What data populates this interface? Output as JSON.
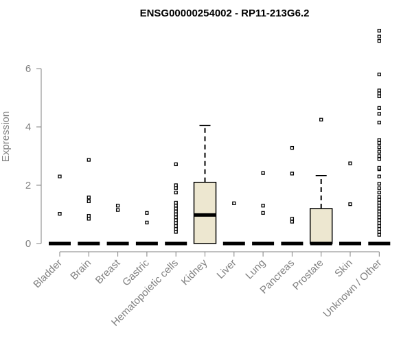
{
  "chart_data": {
    "type": "box",
    "title": "ENSG00000254002 - RP11-213G6.2",
    "ylabel": "Expression",
    "xlabel": "",
    "ylim": [
      0,
      7.5
    ],
    "yticks": [
      0,
      2,
      4,
      6
    ],
    "colors": {
      "box_fill": "#ede7d0",
      "axis": "#808080",
      "stroke": "#000000"
    },
    "categories": [
      "Bladder",
      "Brain",
      "Breast",
      "Gastric",
      "Hematopoietic cells",
      "Kidney",
      "Liver",
      "Lung",
      "Pancreas",
      "Prostate",
      "Skin",
      "Unknown / Other"
    ],
    "boxes": [
      {
        "q1": 0,
        "median": 0,
        "q3": 0,
        "whisker_low": 0,
        "whisker_high": 0,
        "outliers": [
          1.02,
          2.3
        ]
      },
      {
        "q1": 0,
        "median": 0,
        "q3": 0,
        "whisker_low": 0,
        "whisker_high": 0,
        "outliers": [
          0.85,
          0.95,
          1.45,
          1.58,
          2.87
        ]
      },
      {
        "q1": 0,
        "median": 0,
        "q3": 0,
        "whisker_low": 0,
        "whisker_high": 0,
        "outliers": [
          1.15,
          1.3
        ]
      },
      {
        "q1": 0,
        "median": 0,
        "q3": 0,
        "whisker_low": 0,
        "whisker_high": 0,
        "outliers": [
          0.72,
          1.05
        ]
      },
      {
        "q1": 0,
        "median": 0,
        "q3": 0,
        "whisker_low": 0,
        "whisker_high": 0,
        "outliers": [
          0.4,
          0.5,
          0.6,
          0.7,
          0.8,
          0.9,
          1.0,
          1.1,
          1.2,
          1.3,
          1.4,
          1.75,
          1.9,
          2.0,
          2.72
        ]
      },
      {
        "q1": 0,
        "median": 0.98,
        "q3": 2.1,
        "whisker_low": 0,
        "whisker_high": 4.05,
        "outliers": []
      },
      {
        "q1": 0,
        "median": 0,
        "q3": 0,
        "whisker_low": 0,
        "whisker_high": 0,
        "outliers": [
          1.38
        ]
      },
      {
        "q1": 0,
        "median": 0,
        "q3": 0,
        "whisker_low": 0,
        "whisker_high": 0,
        "outliers": [
          1.05,
          1.3,
          2.42
        ]
      },
      {
        "q1": 0,
        "median": 0,
        "q3": 0,
        "whisker_low": 0,
        "whisker_high": 0,
        "outliers": [
          0.75,
          0.85,
          2.4,
          3.28
        ]
      },
      {
        "q1": 0,
        "median": 0,
        "q3": 1.2,
        "whisker_low": 0,
        "whisker_high": 2.33,
        "outliers": [
          4.25
        ]
      },
      {
        "q1": 0,
        "median": 0,
        "q3": 0,
        "whisker_low": 0,
        "whisker_high": 0,
        "outliers": [
          1.35,
          2.75
        ]
      },
      {
        "q1": 0,
        "median": 0,
        "q3": 0,
        "whisker_low": 0,
        "whisker_high": 0,
        "outliers": [
          0.3,
          0.4,
          0.5,
          0.6,
          0.7,
          0.8,
          0.9,
          1.0,
          1.1,
          1.2,
          1.3,
          1.4,
          1.5,
          1.6,
          1.75,
          1.9,
          2.05,
          2.3,
          2.55,
          2.6,
          2.9,
          3.0,
          3.15,
          3.3,
          3.45,
          3.55,
          4.15,
          4.45,
          4.65,
          5.05,
          5.15,
          5.25,
          5.8,
          6.95,
          7.1,
          7.3
        ]
      }
    ]
  }
}
